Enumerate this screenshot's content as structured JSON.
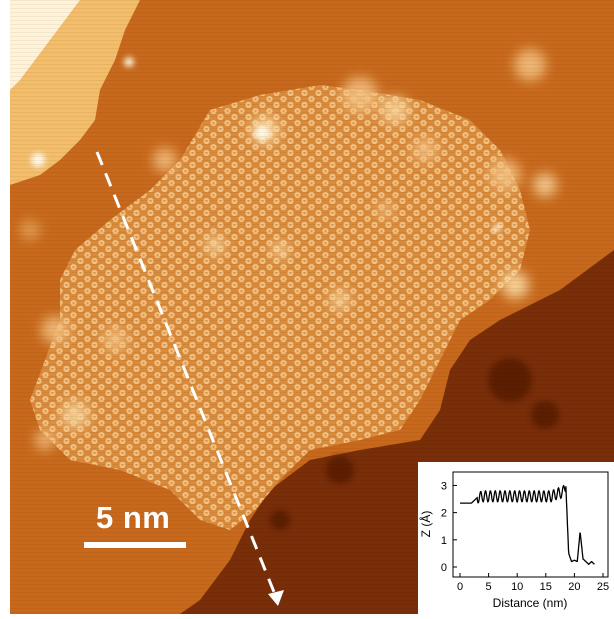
{
  "image": {
    "description_colors": {
      "background_dark": "#6a2406",
      "terrace_mid": "#c8681a",
      "terrace_light": "#f0b060",
      "island_highlight": "#ffe6b0",
      "island_base": "#d98a3a"
    }
  },
  "scale_bar": {
    "label": "5 nm"
  },
  "inset": {
    "chart_data": {
      "type": "line",
      "xlabel": "Distance (nm)",
      "ylabel": "Z (Å)",
      "xlim": [
        0,
        25
      ],
      "ylim": [
        0,
        3.2
      ],
      "x_ticks": [
        "0",
        "5",
        "10",
        "15",
        "20",
        "25"
      ],
      "y_ticks": [
        "0",
        "1",
        "2",
        "3"
      ],
      "series": [
        {
          "x": [
            0,
            1,
            2,
            3,
            4,
            5,
            6,
            7,
            8,
            9,
            10,
            11,
            12,
            13,
            14,
            15,
            16,
            17,
            18,
            18.5,
            19,
            19.5,
            20,
            20.5,
            21,
            21.5,
            22,
            22.5,
            23,
            23.5
          ],
          "y": [
            2.35,
            2.35,
            2.35,
            2.55,
            2.6,
            2.6,
            2.6,
            2.6,
            2.6,
            2.6,
            2.6,
            2.6,
            2.6,
            2.6,
            2.6,
            2.6,
            2.6,
            2.7,
            2.75,
            3.0,
            0.5,
            0.2,
            0.25,
            0.2,
            1.3,
            0.3,
            0.2,
            0.1,
            0.2,
            0.1
          ]
        }
      ]
    }
  }
}
